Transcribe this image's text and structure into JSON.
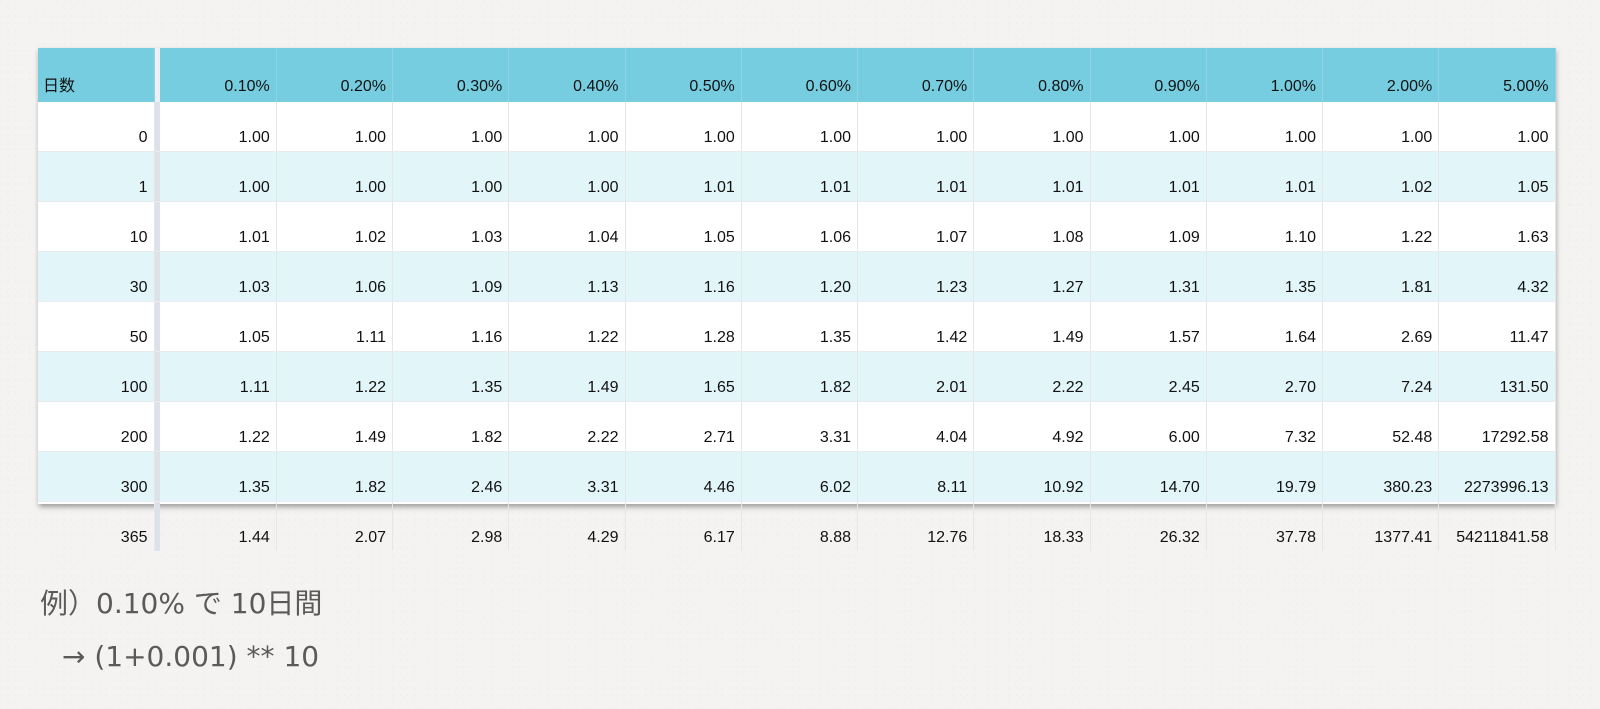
{
  "table": {
    "days_header": "日数",
    "rate_headers": [
      "0.10%",
      "0.20%",
      "0.30%",
      "0.40%",
      "0.50%",
      "0.60%",
      "0.70%",
      "0.80%",
      "0.90%",
      "1.00%",
      "2.00%",
      "5.00%"
    ],
    "rows": [
      {
        "day": "0",
        "values": [
          "1.00",
          "1.00",
          "1.00",
          "1.00",
          "1.00",
          "1.00",
          "1.00",
          "1.00",
          "1.00",
          "1.00",
          "1.00",
          "1.00"
        ]
      },
      {
        "day": "1",
        "values": [
          "1.00",
          "1.00",
          "1.00",
          "1.00",
          "1.01",
          "1.01",
          "1.01",
          "1.01",
          "1.01",
          "1.01",
          "1.02",
          "1.05"
        ]
      },
      {
        "day": "10",
        "values": [
          "1.01",
          "1.02",
          "1.03",
          "1.04",
          "1.05",
          "1.06",
          "1.07",
          "1.08",
          "1.09",
          "1.10",
          "1.22",
          "1.63"
        ]
      },
      {
        "day": "30",
        "values": [
          "1.03",
          "1.06",
          "1.09",
          "1.13",
          "1.16",
          "1.20",
          "1.23",
          "1.27",
          "1.31",
          "1.35",
          "1.81",
          "4.32"
        ]
      },
      {
        "day": "50",
        "values": [
          "1.05",
          "1.11",
          "1.16",
          "1.22",
          "1.28",
          "1.35",
          "1.42",
          "1.49",
          "1.57",
          "1.64",
          "2.69",
          "11.47"
        ]
      },
      {
        "day": "100",
        "values": [
          "1.11",
          "1.22",
          "1.35",
          "1.49",
          "1.65",
          "1.82",
          "2.01",
          "2.22",
          "2.45",
          "2.70",
          "7.24",
          "131.50"
        ]
      },
      {
        "day": "200",
        "values": [
          "1.22",
          "1.49",
          "1.82",
          "2.22",
          "2.71",
          "3.31",
          "4.04",
          "4.92",
          "6.00",
          "7.32",
          "52.48",
          "17292.58"
        ]
      },
      {
        "day": "300",
        "values": [
          "1.35",
          "1.82",
          "2.46",
          "3.31",
          "4.46",
          "6.02",
          "8.11",
          "10.92",
          "14.70",
          "19.79",
          "380.23",
          "2273996.13"
        ]
      },
      {
        "day": "365",
        "values": [
          "1.44",
          "2.07",
          "2.98",
          "4.29",
          "6.17",
          "8.88",
          "12.76",
          "18.33",
          "26.32",
          "37.78",
          "1377.41",
          "54211841.58"
        ]
      }
    ]
  },
  "note": {
    "line1": "例）0.10% で 10日間",
    "line2": "→ (1+0.001) ** 10"
  },
  "colors": {
    "header_bg": "#76cde0",
    "alt_row_bg": "#e2f5f9"
  }
}
